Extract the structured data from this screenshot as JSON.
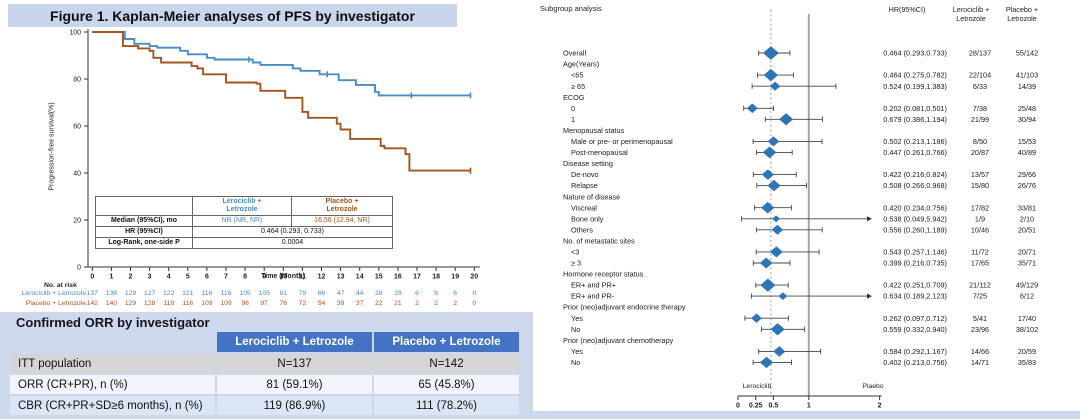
{
  "chart_data": [
    {
      "type": "line",
      "subtype": "kaplan_meier_step",
      "title": "Figure 1. Kaplan-Meier analyses of PFS by investigator",
      "xlabel": "Time (Month)",
      "ylabel": "Progression-free survival(%)",
      "xlim": [
        0,
        20
      ],
      "ylim": [
        0,
        100
      ],
      "xticks": [
        0,
        1,
        2,
        3,
        4,
        5,
        6,
        7,
        8,
        9,
        10,
        11,
        12,
        13,
        14,
        15,
        16,
        17,
        18,
        19,
        20
      ],
      "yticks": [
        100,
        80,
        60,
        40,
        20,
        0
      ],
      "series": [
        {
          "name": "Lerociclib + Letrozole",
          "color": "#4a8cc4",
          "steps": [
            [
              0,
              100
            ],
            [
              1.7,
              97
            ],
            [
              2.2,
              95
            ],
            [
              3.0,
              94
            ],
            [
              3.4,
              93.3
            ],
            [
              4.6,
              92
            ],
            [
              5.0,
              90.5
            ],
            [
              6.0,
              89
            ],
            [
              6.4,
              88.3
            ],
            [
              8.4,
              87
            ],
            [
              8.8,
              86
            ],
            [
              10.5,
              84.5
            ],
            [
              10.9,
              83.5
            ],
            [
              11.9,
              82
            ],
            [
              12.9,
              79.5
            ],
            [
              13.8,
              77.5
            ],
            [
              14.8,
              74.5
            ],
            [
              15.0,
              73
            ]
          ],
          "end_month": 19.8,
          "censors": [
            [
              8.2,
              88.3
            ],
            [
              12.3,
              82
            ],
            [
              16.7,
              73
            ],
            [
              19.8,
              73
            ]
          ]
        },
        {
          "name": "Placebo + Letrozole",
          "color": "#a3551c",
          "steps": [
            [
              0,
              100
            ],
            [
              1.6,
              94
            ],
            [
              2.4,
              93
            ],
            [
              3.0,
              92
            ],
            [
              3.2,
              89
            ],
            [
              3.6,
              87
            ],
            [
              5.2,
              85.5
            ],
            [
              5.5,
              84.5
            ],
            [
              5.8,
              82
            ],
            [
              7.0,
              78.5
            ],
            [
              8.6,
              78
            ],
            [
              8.8,
              75
            ],
            [
              10.1,
              72
            ],
            [
              11.0,
              66
            ],
            [
              11.3,
              63.5
            ],
            [
              12.8,
              61
            ],
            [
              13.0,
              58.5
            ],
            [
              13.5,
              54.5
            ],
            [
              15.1,
              51.5
            ],
            [
              15.3,
              50.5
            ],
            [
              16.4,
              48
            ],
            [
              16.6,
              41
            ]
          ],
          "end_month": 19.8,
          "censors": [
            [
              19.8,
              41
            ]
          ]
        }
      ],
      "inset_table": {
        "arm_headers": [
          [
            "Lerociclib +",
            "Letrozole"
          ],
          [
            "Placebo +",
            "Letrozole"
          ]
        ],
        "rows": [
          {
            "label": "Median (95%CI), mo",
            "values": [
              "NR (NR, NR)",
              "16.56 (12.94, NR)"
            ],
            "span": false
          },
          {
            "label": "HR (95%CI)",
            "values": [
              "0.464 (0.293, 0.733)"
            ],
            "span": true
          },
          {
            "label": "Log-Rank, one-side P",
            "values": [
              "0.0004"
            ],
            "span": true
          }
        ]
      },
      "at_risk": {
        "label": "No. at risk",
        "rows": [
          {
            "name": "Lerociclib + Letrozole",
            "color": "#4a8cc4",
            "values": [
              137,
              136,
              129,
              127,
              122,
              121,
              116,
              116,
              105,
              105,
              81,
              79,
              66,
              47,
              44,
              28,
              28,
              6,
              6,
              6,
              0
            ]
          },
          {
            "name": "Placebo + Letrozole",
            "color": "#a3551c",
            "values": [
              142,
              140,
              129,
              128,
              118,
              116,
              109,
              109,
              98,
              97,
              76,
              72,
              54,
              39,
              37,
              22,
              21,
              2,
              2,
              2,
              0
            ]
          }
        ]
      }
    },
    {
      "type": "scatter",
      "subtype": "forest_plot",
      "title": "Subgroup analysis",
      "col_headers": {
        "hr": "HR(95%CI)",
        "arm1": [
          "Lerociclib +",
          "Letrozole"
        ],
        "arm2": [
          "Placebo +",
          "Letrozole"
        ]
      },
      "xticks": [
        0,
        0.25,
        0.5,
        1,
        2
      ],
      "ref_line": 1,
      "dotted_line": 0.464,
      "axis_group_labels": {
        "left": "Lerociclib",
        "right": "Plaebo"
      },
      "marker_color": "#2f74b5",
      "rows": [
        {
          "label": "Overall",
          "group": false,
          "indent": 0,
          "hr": 0.464,
          "lo": 0.293,
          "hi": 0.733,
          "hr_text": "0.464 (0.293,0.733)",
          "n1": "28/137",
          "n2": "55/142"
        },
        {
          "label": "Age(Years)",
          "group": true
        },
        {
          "label": "<65",
          "group": false,
          "indent": 1,
          "hr": 0.464,
          "lo": 0.275,
          "hi": 0.782,
          "hr_text": "0.464 (0.275,0.782)",
          "n1": "22/104",
          "n2": "41/103"
        },
        {
          "label": "≥ 65",
          "group": false,
          "indent": 1,
          "hr": 0.524,
          "lo": 0.199,
          "hi": 1.383,
          "hr_text": "0.524 (0.199,1.383)",
          "n1": "6/33",
          "n2": "14/39"
        },
        {
          "label": "ECOG",
          "group": true
        },
        {
          "label": "0",
          "group": false,
          "indent": 1,
          "hr": 0.202,
          "lo": 0.081,
          "hi": 0.501,
          "hr_text": "0.202 (0.081,0.501)",
          "n1": "7/38",
          "n2": "25/48"
        },
        {
          "label": "1",
          "group": false,
          "indent": 1,
          "hr": 0.679,
          "lo": 0.386,
          "hi": 1.194,
          "hr_text": "0.679 (0.386,1.194)",
          "n1": "21/99",
          "n2": "30/94"
        },
        {
          "label": "Menopausal status",
          "group": true
        },
        {
          "label": "Male or pre- or perimenopausal",
          "group": false,
          "indent": 1,
          "hr": 0.502,
          "lo": 0.213,
          "hi": 1.186,
          "hr_text": "0.502 (0.213,1.186)",
          "n1": "8/50",
          "n2": "15/53"
        },
        {
          "label": "Post-menopausal",
          "group": false,
          "indent": 1,
          "hr": 0.447,
          "lo": 0.261,
          "hi": 0.766,
          "hr_text": "0.447 (0.261,0.766)",
          "n1": "20/87",
          "n2": "40/89"
        },
        {
          "label": "Disease setting",
          "group": true
        },
        {
          "label": "De-novo",
          "group": false,
          "indent": 1,
          "hr": 0.422,
          "lo": 0.216,
          "hi": 0.824,
          "hr_text": "0.422 (0.216,0.824)",
          "n1": "13/57",
          "n2": "29/66"
        },
        {
          "label": "Relapse",
          "group": false,
          "indent": 1,
          "hr": 0.508,
          "lo": 0.266,
          "hi": 0.968,
          "hr_text": "0.508 (0.266,0.968)",
          "n1": "15/80",
          "n2": "26/76"
        },
        {
          "label": "Nature of disease",
          "group": true
        },
        {
          "label": "Viscreal",
          "group": false,
          "indent": 1,
          "hr": 0.42,
          "lo": 0.234,
          "hi": 0.756,
          "hr_text": "0.420 (0.234,0.756)",
          "n1": "17/82",
          "n2": "33/81"
        },
        {
          "label": "Bone only",
          "group": false,
          "indent": 1,
          "hr": 0.538,
          "lo": 0.049,
          "hi": 5.942,
          "hr_text": "0.538 (0.049,5.942)",
          "n1": "1/9",
          "n2": "2/10"
        },
        {
          "label": "Others",
          "group": false,
          "indent": 1,
          "hr": 0.556,
          "lo": 0.26,
          "hi": 1.189,
          "hr_text": "0.556 (0.260,1.189)",
          "n1": "10/46",
          "n2": "20/51"
        },
        {
          "label": "No. of metastatic sites",
          "group": true
        },
        {
          "label": "<3",
          "group": false,
          "indent": 1,
          "hr": 0.543,
          "lo": 0.257,
          "hi": 1.146,
          "hr_text": "0.543 (0.257,1.146)",
          "n1": "11/72",
          "n2": "20/71"
        },
        {
          "label": "≥ 3",
          "group": false,
          "indent": 1,
          "hr": 0.399,
          "lo": 0.216,
          "hi": 0.735,
          "hr_text": "0.399 (0.216,0.735)",
          "n1": "17/65",
          "n2": "35/71"
        },
        {
          "label": "Hormone receptor status",
          "group": true
        },
        {
          "label": "ER+ and PR+",
          "group": false,
          "indent": 1,
          "hr": 0.422,
          "lo": 0.251,
          "hi": 0.709,
          "hr_text": "0.422 (0.251,0.709)",
          "n1": "21/112",
          "n2": "49/129"
        },
        {
          "label": "ER+ and PR-",
          "group": false,
          "indent": 1,
          "hr": 0.634,
          "lo": 0.189,
          "hi": 2.123,
          "hr_text": "0.634 (0.189,2.123)",
          "n1": "7/25",
          "n2": "6/12"
        },
        {
          "label": "Prior (neo)adjuvant endocrine therapy",
          "group": true
        },
        {
          "label": "Yes",
          "group": false,
          "indent": 1,
          "hr": 0.262,
          "lo": 0.097,
          "hi": 0.712,
          "hr_text": "0.262 (0.097,0.712)",
          "n1": "5/41",
          "n2": "17/40"
        },
        {
          "label": "No",
          "group": false,
          "indent": 1,
          "hr": 0.559,
          "lo": 0.332,
          "hi": 0.94,
          "hr_text": "0.559 (0.332,0.940)",
          "n1": "23/96",
          "n2": "38/102"
        },
        {
          "label": "Prior (neo)adjuvant chemotherapy",
          "group": true
        },
        {
          "label": "Yes",
          "group": false,
          "indent": 1,
          "hr": 0.584,
          "lo": 0.292,
          "hi": 1.167,
          "hr_text": "0.584 (0.292,1.167)",
          "n1": "14/66",
          "n2": "20/59"
        },
        {
          "label": "No",
          "group": false,
          "indent": 1,
          "hr": 0.402,
          "lo": 0.213,
          "hi": 0.756,
          "hr_text": "0.402 (0.213,0.756)",
          "n1": "14/71",
          "n2": "35/83"
        }
      ]
    }
  ],
  "orr_table": {
    "title": "Confirmed ORR by investigator",
    "col_headers": [
      "Lerociclib + Letrozole",
      "Placebo + Letrozole"
    ],
    "rows": [
      {
        "label": "ITT population",
        "values": [
          "N=137",
          "N=142"
        ]
      },
      {
        "label": "ORR (CR+PR), n (%)",
        "values": [
          "81 (59.1%)",
          "65 (45.8%)"
        ]
      },
      {
        "label": "CBR (CR+PR+SD≥6 months), n (%)",
        "values": [
          "119 (86.9%)",
          "111 (78.2%)"
        ]
      }
    ]
  },
  "colors": {
    "banner_bg": "#c9d5eb",
    "section_bg": "#cdd8ec",
    "table_header_bg": "#4472c4",
    "row_gray": "#d5d5d5",
    "row_light": "#f1f5fb",
    "row_blue": "#dbe5f4",
    "km_blue": "#4a8cc4",
    "km_brown": "#a3551c",
    "forest_marker": "#2f74b5"
  }
}
